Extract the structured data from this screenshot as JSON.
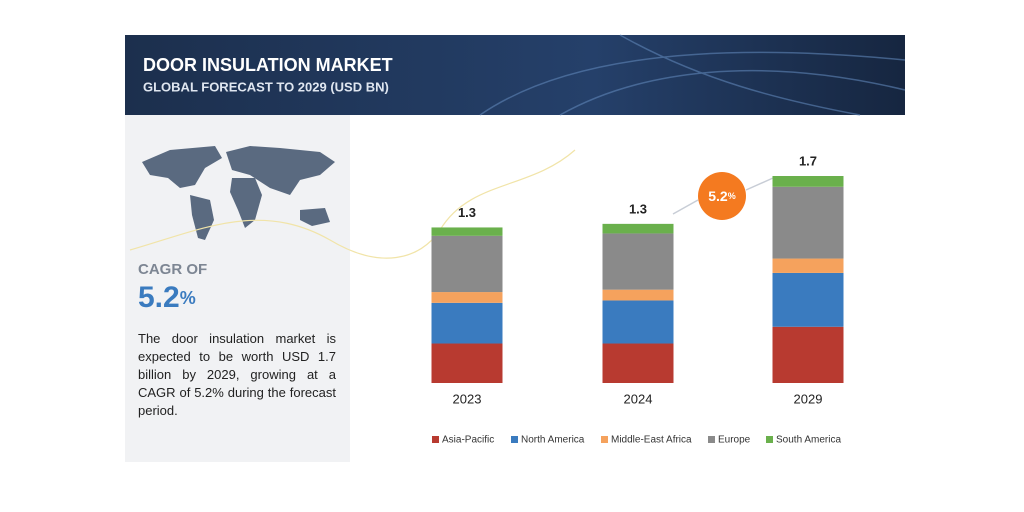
{
  "chart_data": {
    "type": "stacked_bar",
    "title": "DOOR INSULATION MARKET",
    "subtitle": "GLOBAL FORECAST TO 2029 (USD BN)",
    "categories": [
      "2023",
      "2024",
      "2029"
    ],
    "totals": [
      1.3,
      1.3,
      1.7
    ],
    "series": [
      {
        "name": "Asia-Pacific",
        "color": "#b83a30",
        "values": [
          0.33,
          0.33,
          0.47
        ]
      },
      {
        "name": "North America",
        "color": "#3a7bbf",
        "values": [
          0.34,
          0.36,
          0.45
        ]
      },
      {
        "name": "Middle-East Africa",
        "color": "#f5a25d",
        "values": [
          0.09,
          0.09,
          0.12
        ]
      },
      {
        "name": "Europe",
        "color": "#8a8a8a",
        "values": [
          0.47,
          0.47,
          0.6
        ]
      },
      {
        "name": "South America",
        "color": "#6ab04c",
        "values": [
          0.07,
          0.08,
          0.09
        ]
      }
    ],
    "badge": {
      "number": "5.2",
      "unit": "%"
    }
  },
  "panel": {
    "cagr_heading": "CAGR OF",
    "cagr_number": "5.2",
    "cagr_unit": "%",
    "description": "The door insulation market is expected to be worth USD 1.7 billion by 2029, growing at a CAGR of 5.2% during the forecast period."
  }
}
